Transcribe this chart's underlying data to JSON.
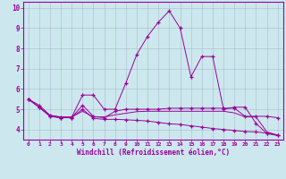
{
  "xlabel": "Windchill (Refroidissement éolien,°C)",
  "bg_color": "#cce8ee",
  "line_color": "#990099",
  "grid_color": "#aabbcc",
  "border_color": "#9900aa",
  "xlim": [
    -0.5,
    23.5
  ],
  "ylim": [
    3.5,
    10.3
  ],
  "xticks": [
    0,
    1,
    2,
    3,
    4,
    5,
    6,
    7,
    8,
    9,
    10,
    11,
    12,
    13,
    14,
    15,
    16,
    17,
    18,
    19,
    20,
    21,
    22,
    23
  ],
  "yticks": [
    4,
    5,
    6,
    7,
    8,
    9,
    10
  ],
  "figsize": [
    3.2,
    2.0
  ],
  "dpi": 100,
  "lines": [
    {
      "x": [
        0,
        1,
        2,
        3,
        4,
        5,
        6,
        7,
        8,
        9,
        10,
        11,
        12,
        13,
        14,
        15,
        16,
        17,
        18,
        19,
        20,
        21,
        22,
        23
      ],
      "y": [
        5.5,
        5.2,
        4.7,
        4.6,
        4.6,
        5.7,
        5.7,
        5.0,
        5.0,
        6.3,
        7.7,
        8.6,
        9.3,
        9.85,
        9.0,
        6.6,
        7.6,
        7.6,
        5.0,
        5.1,
        5.1,
        4.3,
        3.8,
        3.7
      ],
      "marker": true
    },
    {
      "x": [
        0,
        1,
        2,
        3,
        4,
        5,
        6,
        7,
        8,
        9,
        10,
        11,
        12,
        13,
        14,
        15,
        16,
        17,
        18,
        19,
        20,
        21,
        22,
        23
      ],
      "y": [
        5.5,
        5.1,
        4.65,
        4.58,
        4.58,
        5.2,
        4.65,
        4.58,
        4.9,
        5.0,
        5.0,
        5.0,
        5.0,
        5.05,
        5.05,
        5.05,
        5.05,
        5.05,
        5.05,
        5.05,
        4.65,
        4.65,
        4.65,
        4.58
      ],
      "marker": true
    },
    {
      "x": [
        0,
        1,
        2,
        3,
        4,
        5,
        6,
        7,
        8,
        9,
        10,
        11,
        12,
        13,
        14,
        15,
        16,
        17,
        18,
        19,
        20,
        21,
        22,
        23
      ],
      "y": [
        5.5,
        5.1,
        4.65,
        4.58,
        4.58,
        5.0,
        4.55,
        4.5,
        4.5,
        4.48,
        4.45,
        4.42,
        4.35,
        4.28,
        4.25,
        4.18,
        4.12,
        4.05,
        4.0,
        3.95,
        3.9,
        3.88,
        3.82,
        3.72
      ],
      "marker": true
    },
    {
      "x": [
        0,
        1,
        2,
        3,
        4,
        5,
        6,
        7,
        8,
        9,
        10,
        11,
        12,
        13,
        14,
        15,
        16,
        17,
        18,
        19,
        20,
        21,
        22,
        23
      ],
      "y": [
        5.5,
        5.1,
        4.7,
        4.62,
        4.62,
        4.9,
        4.62,
        4.62,
        4.72,
        4.8,
        4.88,
        4.9,
        4.9,
        4.9,
        4.9,
        4.9,
        4.9,
        4.9,
        4.9,
        4.82,
        4.62,
        4.62,
        3.88,
        3.72
      ],
      "marker": false
    }
  ]
}
